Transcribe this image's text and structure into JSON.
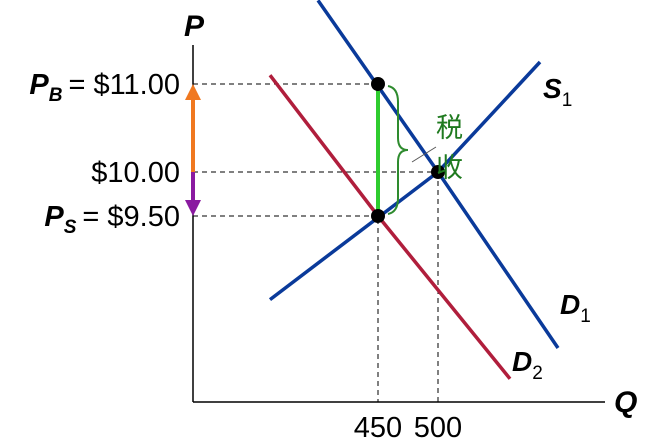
{
  "chart_data": {
    "type": "line",
    "axes": {
      "x": "Q",
      "y": "P"
    },
    "y_ticks": [
      {
        "value": 11.0,
        "prefix": "P",
        "sub": "B",
        "text": "= $11.00"
      },
      {
        "value": 10.0,
        "prefix": "",
        "sub": "",
        "text": "$10.00"
      },
      {
        "value": 9.5,
        "prefix": "P",
        "sub": "S",
        "text": "= $9.50"
      }
    ],
    "x_ticks": [
      {
        "value": 450,
        "text": "450"
      },
      {
        "value": 500,
        "text": "500"
      }
    ],
    "series": [
      {
        "name": "S",
        "sub": "1",
        "color": "#0a3a9a",
        "points": [
          [
            360,
            8.55
          ],
          [
            500,
            10.0
          ],
          [
            585,
            11.25
          ]
        ]
      },
      {
        "name": "D",
        "sub": "1",
        "color": "#0a3a9a",
        "points": [
          [
            400,
            11.95
          ],
          [
            500,
            10.0
          ],
          [
            600,
            8.0
          ]
        ]
      },
      {
        "name": "D",
        "sub": "2",
        "color": "#b01e3c",
        "points": [
          [
            360,
            11.1
          ],
          [
            450,
            9.5
          ],
          [
            560,
            7.65
          ]
        ]
      }
    ],
    "equilibria": [
      {
        "q": 500,
        "p": 10.0
      },
      {
        "q": 450,
        "p": 11.0
      },
      {
        "q": 450,
        "p": 9.5
      }
    ],
    "tax_label": "税收",
    "colors": {
      "tax_wedge": "#2ecc2e",
      "buyer_arrow": "#f07820",
      "seller_arrow": "#8a1aa0",
      "brace": "#2e8b2e"
    }
  }
}
